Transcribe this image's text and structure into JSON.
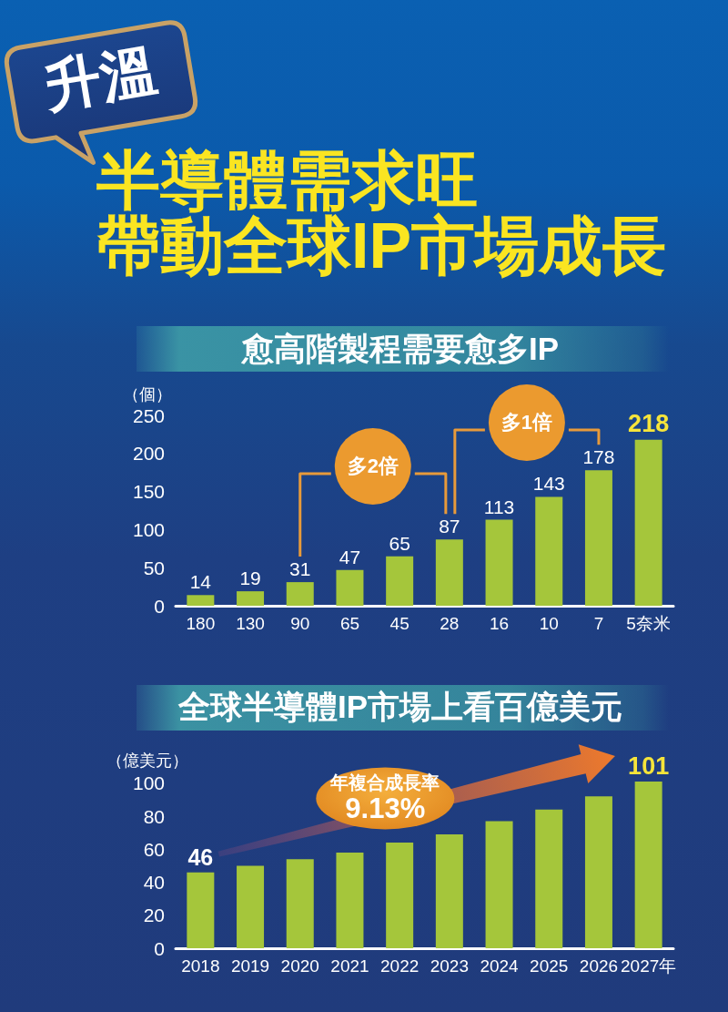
{
  "chart_data": [
    {
      "type": "other",
      "title": "半導體需求旺",
      "subtitle": "帶動全球IP市場成長",
      "annotations": [
        "升溫"
      ]
    },
    {
      "type": "bar",
      "title": "愈高階製程需要愈多IP",
      "ylabel": "（個）",
      "categories": [
        "180",
        "130",
        "90",
        "65",
        "45",
        "28",
        "16",
        "10",
        "7",
        "5奈米"
      ],
      "values": [
        14,
        19,
        31,
        47,
        65,
        87,
        113,
        143,
        178,
        218
      ],
      "color": "#a5c63b",
      "ylim": [
        0,
        250
      ],
      "yticks": [
        0,
        50,
        100,
        150,
        200,
        250
      ],
      "data_labels": true,
      "annotations": [
        "多2倍",
        "多1倍"
      ]
    },
    {
      "type": "bar",
      "title": "全球半導體IP市場上看百億美元",
      "ylabel": "（億美元）",
      "categories": [
        "2018",
        "2019",
        "2020",
        "2021",
        "2022",
        "2023",
        "2024",
        "2025",
        "2026",
        "2027年"
      ],
      "values": [
        46,
        50,
        54,
        58,
        64,
        69,
        77,
        84,
        92,
        101
      ],
      "value_labels": [
        "46",
        null,
        null,
        null,
        null,
        null,
        null,
        null,
        null,
        "101"
      ],
      "color": "#a5c63b",
      "ylim": [
        0,
        101
      ],
      "yticks": [
        0,
        20,
        40,
        60,
        80,
        100
      ],
      "annotations": [
        "年複合成長率\n9.13%"
      ]
    }
  ]
}
